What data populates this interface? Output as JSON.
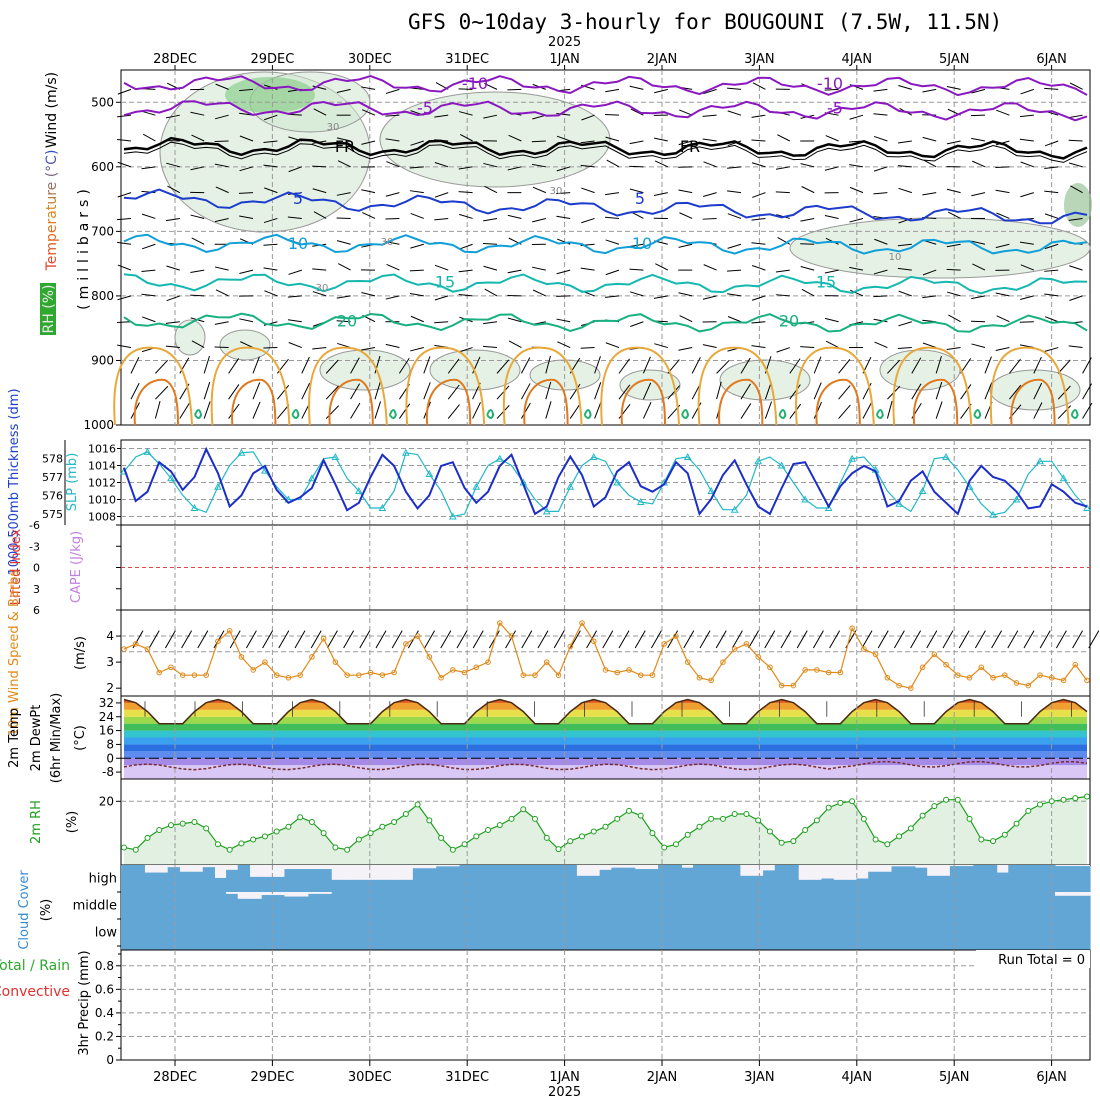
{
  "title": "GFS 0~10day 3-hourly for BOUGOUNI (7.5W, 11.5N)",
  "year_label": "2025",
  "date_labels": [
    "28DEC",
    "29DEC",
    "30DEC",
    "31DEC",
    "1JAN",
    "2JAN",
    "3JAN",
    "4JAN",
    "5JAN",
    "6JAN"
  ],
  "chart_data": [
    {
      "panel": "upper-air",
      "type": "contour",
      "ylabel": "(millibars)",
      "side_labels": [
        "Wind (m/s)",
        "Temperature (°C)",
        "RH (%)"
      ],
      "y_ticks": [
        500,
        600,
        700,
        800,
        900,
        1000
      ],
      "ylim": [
        450,
        1000
      ],
      "temperature_contours": [
        {
          "level": -10,
          "pressure_mb": 470,
          "color": "#8a18c0",
          "labels": [
            "-10",
            "-10"
          ]
        },
        {
          "level": -5,
          "pressure_mb": 508,
          "color": "#8a18c0",
          "labels": [
            "-5",
            "-5"
          ]
        },
        {
          "level": 0,
          "pressure_mb": 568,
          "color": "#000000",
          "labels": [
            "FR",
            "FR"
          ]
        },
        {
          "level": 5,
          "pressure_mb": 648,
          "color": "#1c3ccc",
          "labels": [
            "5",
            "5"
          ]
        },
        {
          "level": 10,
          "pressure_mb": 718,
          "color": "#109fd8",
          "labels": [
            "10",
            "10"
          ]
        },
        {
          "level": 15,
          "pressure_mb": 778,
          "color": "#15b8b0",
          "labels": [
            "15",
            "15"
          ]
        },
        {
          "level": 20,
          "pressure_mb": 838,
          "color": "#18b080",
          "labels": [
            "20",
            "20"
          ]
        }
      ],
      "rh_labels": [
        "30",
        "30",
        "10",
        "30",
        "30"
      ]
    },
    {
      "panel": "thickness-slp",
      "type": "line",
      "left_ylabel": "1000-500mb Thickness (dm)",
      "right_ylabel": "SLP (mb)",
      "thickness_ticks": [
        575,
        576,
        577,
        578
      ],
      "slp_ticks": [
        1008,
        1010,
        1012,
        1014,
        1016
      ],
      "series": [
        {
          "name": "SLP",
          "color": "#22b8c8",
          "values": [
            1013.3,
            1015.0,
            1015.6,
            1014.2,
            1012.5,
            1010.5,
            1009.0,
            1008.5,
            1011.5,
            1014.0,
            1015.5,
            1015.6,
            1013.4,
            1011.5,
            1010.0,
            1010.0,
            1012.5,
            1014.8,
            1015.0,
            1012.5,
            1011.0,
            1009.0,
            1009.0,
            1011.0,
            1015.5,
            1015.3,
            1013.0,
            1011.0,
            1008.0,
            1008.3,
            1011.5,
            1014.0,
            1014.8,
            1014.0,
            1012.0,
            1010.0,
            1008.6,
            1008.6,
            1011.5,
            1014.0,
            1015.0,
            1014.5,
            1012.0,
            1010.5,
            1009.7,
            1009.5,
            1012.0,
            1014.8,
            1015.0,
            1013.5,
            1011.0,
            1008.8,
            1008.8,
            1010.5,
            1014.5,
            1015.0,
            1014.0,
            1012.0,
            1010.0,
            1009.0,
            1009.0,
            1012.0,
            1014.8,
            1015.0,
            1013.5,
            1011.0,
            1009.5,
            1008.6,
            1011.0,
            1014.8,
            1015.0,
            1013.5,
            1011.5,
            1009.5,
            1008.2,
            1008.5,
            1010.0,
            1013.0,
            1014.5,
            1014.5,
            1012.5,
            1010.5,
            1009.0
          ]
        },
        {
          "name": "Thickness",
          "color": "#1c2ec8",
          "values": [
            577.5,
            575.7,
            576.2,
            577.8,
            577.3,
            576.3,
            577.0,
            578.5,
            577.2,
            575.4,
            576.0,
            577.2,
            577.6,
            576.3,
            575.6,
            575.9,
            576.4,
            577.9,
            576.6,
            575.2,
            575.6,
            577.0,
            578.2,
            577.6,
            576.2,
            575.3,
            576.0,
            577.6,
            577.8,
            576.4,
            575.6,
            576.2,
            577.6,
            578.2,
            576.6,
            575.0,
            575.4,
            577.0,
            578.1,
            577.1,
            575.4,
            575.9,
            577.3,
            577.8,
            576.5,
            576.2,
            576.6,
            577.8,
            577.2,
            575.0,
            575.8,
            577.1,
            577.9,
            576.6,
            575.4,
            575.0,
            576.4,
            577.7,
            577.8,
            576.6,
            575.4,
            576.5,
            577.2,
            577.6,
            577.3,
            575.4,
            575.7,
            576.8,
            577.3,
            576.2,
            575.6,
            575.0,
            576.8,
            577.6,
            577.0,
            576.8,
            576.2,
            575.3,
            575.4,
            576.6,
            576.2,
            575.6,
            575.4
          ]
        }
      ]
    },
    {
      "panel": "instability",
      "type": "line",
      "left_ylabel": "Lifted Index",
      "right_ylabel": "CAPE (J/kg)",
      "y_ticks": [
        "-6",
        "-3",
        "0",
        "3",
        "6"
      ],
      "ylim": [
        6,
        -6
      ]
    },
    {
      "panel": "10m-wind",
      "type": "line",
      "ylabel": "10m Wind Speed & Barbs",
      "unit": "(m/s)",
      "y_ticks": [
        2,
        3,
        4
      ],
      "ylim": [
        1.7,
        5
      ],
      "series": [
        {
          "name": "10m Wind Speed",
          "color": "#e08a1a",
          "values": [
            3.5,
            3.7,
            3.5,
            2.6,
            2.8,
            2.5,
            2.5,
            2.5,
            3.8,
            4.2,
            3.2,
            2.7,
            3.0,
            2.5,
            2.4,
            2.5,
            3.2,
            3.9,
            3.0,
            2.5,
            2.5,
            2.6,
            2.5,
            2.6,
            3.7,
            4.0,
            3.2,
            2.4,
            2.7,
            2.6,
            2.8,
            3.0,
            4.5,
            4.0,
            2.5,
            2.5,
            3.0,
            2.5,
            3.6,
            4.5,
            3.8,
            2.7,
            2.6,
            2.7,
            2.5,
            2.5,
            3.7,
            4.0,
            3.0,
            2.4,
            2.3,
            3.0,
            3.5,
            3.7,
            3.2,
            2.8,
            2.1,
            2.1,
            2.7,
            2.7,
            2.6,
            2.6,
            4.3,
            3.5,
            3.3,
            2.4,
            2.1,
            2.0,
            2.8,
            3.3,
            2.9,
            2.5,
            2.4,
            2.8,
            2.4,
            2.5,
            2.2,
            2.1,
            2.5,
            2.4,
            2.3,
            2.9,
            2.3
          ]
        }
      ]
    },
    {
      "panel": "2m-temperature",
      "type": "area",
      "ylabel": "2m Temp",
      "ylabel2": "2m DewPt",
      "ylabel3": "(6hr Min/Max)",
      "unit": "(°C)",
      "y_ticks": [
        -8,
        0,
        8,
        16,
        24,
        32
      ],
      "ylim": [
        -12,
        36
      ],
      "daily_min_temp": 20,
      "daily_max_temp": 34,
      "dewpoint": -5
    },
    {
      "panel": "2m-rh",
      "type": "area",
      "ylabel": "2m RH",
      "unit": "(%)",
      "y_ticks": [
        20
      ],
      "ylim": [
        0,
        27
      ],
      "series": [
        {
          "name": "2m RH",
          "color": "#1ea01e",
          "values": [
            5.5,
            4.8,
            8.5,
            11.0,
            12.5,
            13.0,
            13.5,
            11.5,
            6.5,
            4.8,
            6.8,
            8.0,
            9.0,
            10.5,
            12.0,
            15.0,
            13.5,
            10.0,
            5.5,
            4.8,
            8.0,
            10.0,
            12.0,
            13.5,
            16.0,
            19.0,
            14.0,
            8.5,
            4.8,
            6.5,
            9.0,
            11.0,
            12.5,
            14.5,
            17.5,
            14.5,
            8.5,
            5.0,
            7.5,
            9.0,
            10.5,
            12.0,
            14.5,
            17.0,
            15.5,
            10.0,
            5.5,
            6.5,
            9.5,
            12.0,
            14.5,
            14.5,
            16.0,
            16.0,
            14.0,
            10.5,
            7.0,
            7.5,
            11.0,
            14.0,
            18.0,
            19.5,
            20.0,
            14.5,
            8.0,
            6.5,
            9.0,
            11.5,
            15.5,
            18.5,
            20.5,
            20.5,
            14.5,
            8.0,
            7.5,
            9.5,
            13.0,
            17.0,
            19.0,
            20.0,
            20.5,
            21.0,
            21.5
          ]
        }
      ]
    },
    {
      "panel": "cloud-cover",
      "type": "bar",
      "ylabel": "Cloud Cover",
      "unit": "(%)",
      "layers": [
        "high",
        "middle",
        "low"
      ],
      "high_cover": [
        1,
        1,
        0.72,
        0.72,
        0.92,
        0.75,
        0.75,
        0.92,
        0.52,
        0.82,
        1,
        0.56,
        0.56,
        0.56,
        0.85,
        0.85,
        0.85,
        0.85,
        0.45,
        0.45,
        0.45,
        0.45,
        0.45,
        0.45,
        0.45,
        0.88,
        0.88,
        0.95,
        0.95,
        1,
        1,
        1,
        1,
        1,
        1,
        1,
        1,
        1,
        1,
        0.6,
        0.6,
        0.82,
        0.9,
        0.9,
        0.85,
        0.85,
        1,
        1,
        0.9,
        1,
        1,
        1,
        1,
        0.6,
        0.6,
        0.8,
        1,
        1,
        0.45,
        0.45,
        0.5,
        0.45,
        0.45,
        0.5,
        0.75,
        0.75,
        0.95,
        0.95,
        0.9,
        0.6,
        0.6,
        0.96,
        0.96,
        1,
        1,
        0.72,
        1,
        1,
        1,
        1,
        0.96,
        0.96,
        0.96
      ],
      "middle_cover": [
        0,
        0,
        0,
        0,
        0,
        0,
        0,
        0,
        0,
        0.05,
        0.18,
        0.18,
        0.08,
        0.08,
        0.12,
        0.12,
        0.05,
        0.05,
        0,
        0,
        0,
        0,
        0,
        0,
        0,
        0,
        0,
        0,
        0,
        0,
        0,
        0,
        0,
        0,
        0,
        0,
        0,
        0,
        0,
        0,
        0,
        0,
        0,
        0,
        0,
        0,
        0,
        0,
        0,
        0,
        0,
        0,
        0,
        0,
        0,
        0,
        0,
        0,
        0,
        0,
        0,
        0,
        0,
        0,
        0,
        0,
        0,
        0,
        0,
        0,
        0,
        0,
        0,
        0,
        0,
        0,
        0,
        0,
        0,
        0,
        0.1,
        0.1,
        0.1
      ],
      "low_cover": [
        0,
        0,
        0,
        0,
        0,
        0,
        0,
        0,
        0,
        0,
        0,
        0,
        0,
        0,
        0,
        0,
        0,
        0,
        0,
        0,
        0,
        0,
        0,
        0,
        0,
        0,
        0,
        0,
        0,
        0,
        0,
        0,
        0,
        0,
        0,
        0,
        0,
        0,
        0,
        0,
        0,
        0,
        0,
        0,
        0,
        0,
        0,
        0,
        0,
        0,
        0,
        0,
        0,
        0,
        0,
        0,
        0,
        0,
        0,
        0,
        0,
        0,
        0,
        0,
        0,
        0,
        0,
        0,
        0,
        0,
        0,
        0,
        0,
        0,
        0,
        0,
        0,
        0,
        0,
        0,
        0,
        0,
        0
      ]
    },
    {
      "panel": "precip",
      "type": "bar",
      "ylabel": "3hr Precip (mm)",
      "legend": [
        "Total / Rain",
        "Convective"
      ],
      "y_ticks": [
        "0",
        "0.2",
        "0.4",
        "0.6",
        "0.8"
      ],
      "ylim": [
        0,
        0.9
      ],
      "run_total": "Run Total = 0",
      "values": [
        0,
        0,
        0,
        0,
        0,
        0,
        0,
        0,
        0,
        0
      ]
    }
  ]
}
